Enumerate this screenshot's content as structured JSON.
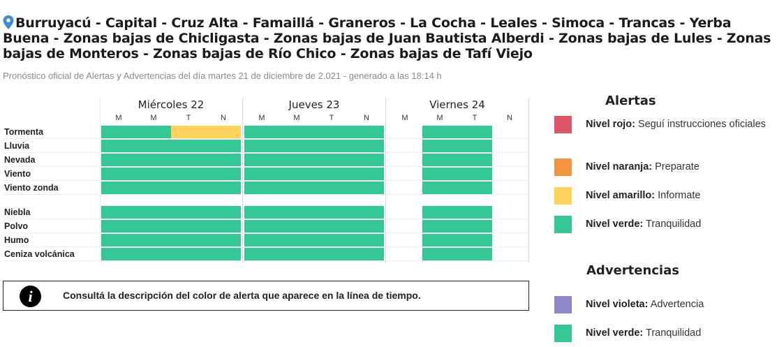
{
  "header": {
    "title": "Burruyacú - Capital - Cruz Alta - Famaillá - Graneros - La Cocha - Leales - Simoca - Trancas - Yerba Buena - Zonas bajas de Chicligasta - Zonas bajas de Juan Bautista Alberdi - Zonas bajas de Lules - Zonas bajas de Monteros - Zonas bajas de Río Chico - Zonas bajas de Tafí Viejo",
    "pin_icon": "location-pin-icon",
    "pin_color": "#3d8bd8",
    "subtitle": "Pronóstico oficial de Alertas y Advertencias del día martes 21 de diciembre de 2.021 - generado a las 18:14 h"
  },
  "days": [
    {
      "label": "Miércoles 22",
      "periods": [
        "M",
        "M",
        "T",
        "N"
      ]
    },
    {
      "label": "Jueves 23",
      "periods": [
        "M",
        "M",
        "T",
        "N"
      ]
    },
    {
      "label": "Viernes 24",
      "periods": [
        "M",
        "M",
        "T",
        "N"
      ]
    }
  ],
  "phenomena": [
    {
      "label": "Tormenta",
      "levels": [
        "verde",
        "verde",
        "amarillo",
        "amarillo",
        "verde",
        "verde",
        "verde",
        "verde",
        null,
        "verde",
        "verde",
        null
      ]
    },
    {
      "label": "Lluvia",
      "levels": [
        "verde",
        "verde",
        "verde",
        "verde",
        "verde",
        "verde",
        "verde",
        "verde",
        null,
        "verde",
        "verde",
        null
      ]
    },
    {
      "label": "Nevada",
      "levels": [
        "verde",
        "verde",
        "verde",
        "verde",
        "verde",
        "verde",
        "verde",
        "verde",
        null,
        "verde",
        "verde",
        null
      ]
    },
    {
      "label": "Viento",
      "levels": [
        "verde",
        "verde",
        "verde",
        "verde",
        "verde",
        "verde",
        "verde",
        "verde",
        null,
        "verde",
        "verde",
        null
      ]
    },
    {
      "label": "Viento zonda",
      "levels": [
        "verde",
        "verde",
        "verde",
        "verde",
        "verde",
        "verde",
        "verde",
        "verde",
        null,
        "verde",
        "verde",
        null
      ]
    },
    {
      "label": "Niebla",
      "levels": [
        "verde",
        "verde",
        "verde",
        "verde",
        "verde",
        "verde",
        "verde",
        "verde",
        null,
        "verde",
        "verde",
        null
      ]
    },
    {
      "label": "Polvo",
      "levels": [
        "verde",
        "verde",
        "verde",
        "verde",
        "verde",
        "verde",
        "verde",
        "verde",
        null,
        "verde",
        "verde",
        null
      ]
    },
    {
      "label": "Humo",
      "levels": [
        "verde",
        "verde",
        "verde",
        "verde",
        "verde",
        "verde",
        "verde",
        "verde",
        null,
        "verde",
        "verde",
        null
      ]
    },
    {
      "label": "Ceniza volcánica",
      "levels": [
        "verde",
        "verde",
        "verde",
        "verde",
        "verde",
        "verde",
        "verde",
        "verde",
        null,
        "verde",
        "verde",
        null
      ]
    }
  ],
  "info": {
    "icon": "info-icon",
    "glyph": "i",
    "text": "Consultá la descripción del color de alerta que aparece en la línea de tiempo."
  },
  "legend": {
    "alertas_title": "Alertas",
    "advertencias_title": "Advertencias",
    "alertas": [
      {
        "level": "Nivel rojo:",
        "desc": "Seguí instrucciones oficiales",
        "color": "#e05565"
      },
      {
        "level": "Nivel naranja:",
        "desc": "Preparate",
        "color": "#f39440"
      },
      {
        "level": "Nivel amarillo:",
        "desc": "Informate",
        "color": "#fdd35b"
      },
      {
        "level": "Nivel verde:",
        "desc": "Tranquilidad",
        "color": "#34c894"
      }
    ],
    "advertencias": [
      {
        "level": "Nivel violeta:",
        "desc": "Advertencia",
        "color": "#8e88c8"
      },
      {
        "level": "Nivel verde:",
        "desc": "Tranquilidad",
        "color": "#34c894"
      }
    ]
  },
  "colors": {
    "verde": "#34c894",
    "amarillo": "#fdd35b"
  }
}
